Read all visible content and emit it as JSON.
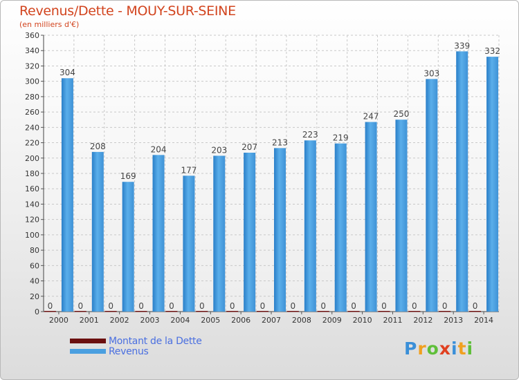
{
  "header": {
    "title": "Revenus/Dette - MOUY-SUR-SEINE",
    "subtitle": "(en milliers d'€)"
  },
  "legend": {
    "items": [
      {
        "label": "Montant de la Dette",
        "color": "#6b0f0f"
      },
      {
        "label": "Revenus",
        "color": "#4a9fe0"
      }
    ]
  },
  "logo": {
    "letters": [
      {
        "ch": "P",
        "color": "#3a8fd8"
      },
      {
        "ch": "r",
        "color": "#f0a020"
      },
      {
        "ch": "o",
        "color": "#5fbf3a"
      },
      {
        "ch": "x",
        "color": "#e04020"
      },
      {
        "ch": "i",
        "color": "#3a8fd8"
      },
      {
        "ch": "t",
        "color": "#f0a020"
      },
      {
        "ch": "i",
        "color": "#5fbf3a"
      }
    ]
  },
  "chart_data": {
    "type": "bar",
    "title": "Revenus/Dette - MOUY-SUR-SEINE",
    "subtitle": "(en milliers d'€)",
    "categories": [
      "2000",
      "2001",
      "2002",
      "2003",
      "2004",
      "2005",
      "2006",
      "2007",
      "2008",
      "2009",
      "2010",
      "2011",
      "2012",
      "2013",
      "2014"
    ],
    "series": [
      {
        "name": "Montant de la Dette",
        "color": "#6b0f0f",
        "values": [
          0,
          0,
          0,
          0,
          0,
          0,
          0,
          0,
          0,
          0,
          0,
          0,
          0,
          0,
          0
        ]
      },
      {
        "name": "Revenus",
        "color": "#4a9fe0",
        "values": [
          304,
          208,
          169,
          204,
          177,
          203,
          207,
          213,
          223,
          219,
          247,
          250,
          303,
          339,
          332
        ]
      }
    ],
    "ylim": [
      0,
      360
    ],
    "yticks": [
      0,
      20,
      40,
      60,
      80,
      100,
      120,
      140,
      160,
      180,
      200,
      220,
      240,
      260,
      280,
      300,
      320,
      340,
      360
    ],
    "grid": true,
    "legend_position": "bottom-left"
  }
}
